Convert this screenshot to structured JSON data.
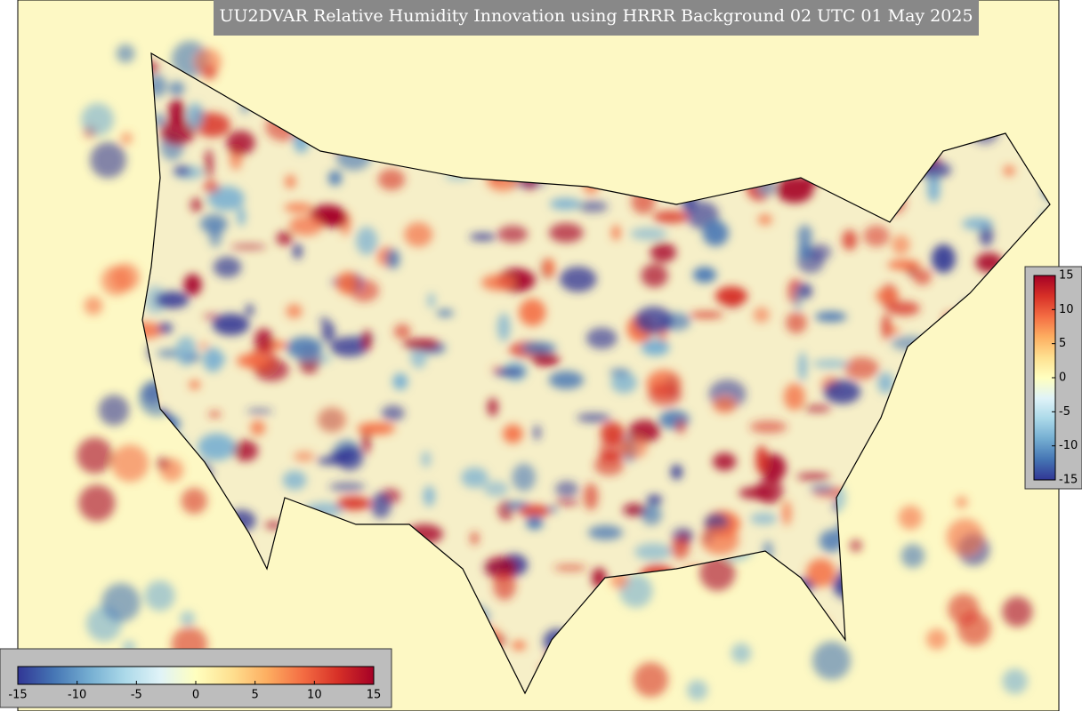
{
  "title": "UU2DVAR Relative Humidity Innovation using HRRR Background 02 UTC 01 May 2025",
  "colorbar_horizontal": {
    "range": [
      -15,
      15
    ],
    "ticks": [
      -15,
      -10,
      -5,
      0,
      5,
      10,
      15
    ]
  },
  "colorbar_vertical": {
    "range": [
      -15,
      15
    ],
    "ticks": [
      15,
      10,
      5,
      0,
      -5,
      -10,
      -15
    ]
  },
  "colormap": [
    "#313695",
    "#4575b4",
    "#74add1",
    "#abd9e9",
    "#e0f3f8",
    "#ffffbf",
    "#fee090",
    "#fdae61",
    "#f46d43",
    "#d73027",
    "#a50026"
  ]
}
